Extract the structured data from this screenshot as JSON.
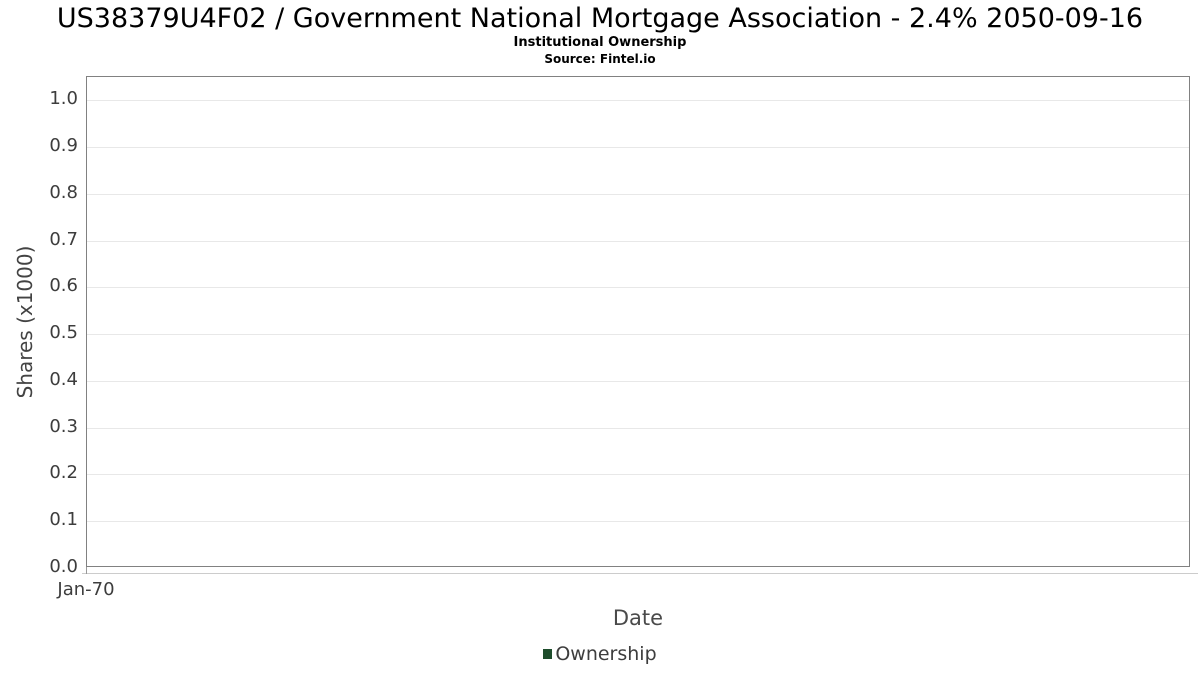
{
  "header": {
    "title": "US38379U4F02 / Government National Mortgage Association - 2.4% 2050-09-16",
    "subtitle": "Institutional Ownership",
    "source": "Source: Fintel.io"
  },
  "chart_data": {
    "type": "line",
    "title": "US38379U4F02 / Government National Mortgage Association - 2.4% 2050-09-16",
    "subtitle": "Institutional Ownership",
    "source": "Source: Fintel.io",
    "xlabel": "Date",
    "ylabel": "Shares (x1000)",
    "x_ticks": [
      "Jan-70"
    ],
    "y_ticks": [
      0.0,
      0.1,
      0.2,
      0.3,
      0.4,
      0.5,
      0.6,
      0.7,
      0.8,
      0.9,
      1.0
    ],
    "ylim": [
      0,
      1.05
    ],
    "grid": true,
    "gridline_color": "#e8e8e8",
    "plot_border_color": "#818181",
    "legend_position": "bottom-center",
    "series": [
      {
        "name": "Ownership",
        "color": "#1e4d2c",
        "x": [],
        "values": []
      }
    ]
  },
  "legend": {
    "items": [
      {
        "label": "Ownership",
        "color": "#1e4d2c"
      }
    ]
  }
}
